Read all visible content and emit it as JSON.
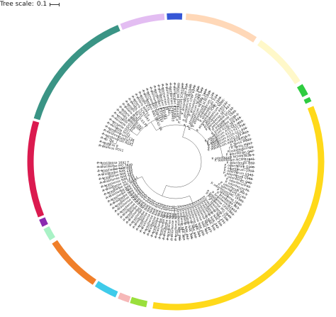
{
  "tree_scale": {
    "label": "Tree scale:",
    "value": "0.1"
  },
  "clades": [
    {
      "color": "#2ECC40"
    },
    {
      "color": "#2ECC40"
    },
    {
      "color": "#FFF8C9"
    },
    {
      "color": "#FFD8B8"
    },
    {
      "color": "#3556D6"
    },
    {
      "color": "#E3BDF2"
    },
    {
      "color": "#3A9485"
    },
    {
      "color": "#DB1A4F"
    },
    {
      "color": "#8A2BB0"
    },
    {
      "color": "#A9F2C6"
    },
    {
      "color": "#F07F2A"
    },
    {
      "color": "#3FCBEA"
    },
    {
      "color": "#F6B8B8"
    },
    {
      "color": "#9ADF3C"
    },
    {
      "color": "#FFD91A"
    }
  ],
  "leaf_labels": [
    "P. oxalicus PO11",
    "P. oxalicus 8",
    "P. sp. Q4",
    "P. carotovorum RG41",
    "P. carotovorum SCC2",
    "P. carotovorum F138",
    "P. versatile SCC1",
    "P. versatile Q3",
    "P. versatile QL21",
    "P. versatile Q138",
    "P. polaris NIBIO1006",
    "P. polaris NIBIO1392",
    "P. polaris PCM2",
    "P. polaris S4.16.03.P2",
    "P. polaris 1022",
    "P. polaris SCRI1043",
    "P. polaris WPP14",
    "P. polaris A73",
    "P. parmentieri RNS 08-42-1A",
    "P. parmentieri WPP163",
    "P. parmentieri SCC3193",
    "P. parmentieri IFB5427",
    "P. parmentieri IFB5441",
    "P. parmentieri S9",
    "P. parmentieri F062",
    "P. parmentieri CFBP8403",
    "P. parmentieri IFB5408",
    "P. parmentieri WC19161",
    "P. atrosepticum SCRI1043",
    "P. atrosepticum 21A",
    "P. atrosepticum JG10-08",
    "P. atrosepticum CFBP 6276",
    "P. atrosepticum 36A",
    "P. atrosepticum NCPPB 549",
    "P. atrosepticum NCPPB 3404",
    "P. atrosepticum SCRI1039",
    "P. atrosepticum 1.25",
    "P. atrosepticum 1.24",
    "P. atrosepticum ICMP 1526",
    "P. atrosepticum NZEC",
    "P. peruviense IFB5232",
    "P. peruviense SCC A17",
    "P. peruviense UGC32",
    "P. punjabense SS95",
    "P. punjabense SS95-2",
    "P. aquaticum A212-S19-A16",
    "P. aquaticum A35-S23-M15",
    "P. aquaticum A127-S21-F16",
    "P. aquaticum A105-S21-F16",
    "P. aquaticum A102-S19-M15",
    "P. aquaticum A98-S19-M15 T",
    "P. fontis M022",
    "P. fontis M017",
    "P. odoriferum Q3",
    "P. odoriferum Q47",
    "P. odoriferum NCPPB3839 T",
    "P. odoriferum NCPPB3841",
    "P. odoriferum Q32",
    "P. odoriferum Q106",
    "P. odoriferum Q110",
    "P. odoriferum Q142",
    "P. odoriferum Q166",
    "P. odoriferum Q40",
    "P. odoriferum S1",
    "P. odoriferum T5",
    "P. odoriferum JK2.1",
    "P. odoriferum BC S7",
    "P. odoriferum WC 19161",
    "P. brasiliense 1692",
    "P. brasiliense BC1",
    "P. brasiliense BZA12",
    "P. brasiliense CFIA1002",
    "P. brasiliense IPO 3649",
    "P. brasiliense 2106",
    "P. brasiliense NAK 231",
    "P. brasiliense NAK 220",
    "P. brasiliense NAK 242",
    "P. brasiliense NAK 370",
    "P. brasiliense NAK 427",
    "P. brasiliense NAK 461",
    "P. brasiliense NAK 255",
    "P. brasiliense NAK 283",
    "P. brasiliense NAK 410",
    "P. brasiliense NAK 398",
    "P. brasiliense NAK 412",
    "P. brasiliense NAK 367",
    "P. brasiliense NAK 298",
    "P. brasiliense NAK 227",
    "P. brasiliense NAK 238",
    "P. brasiliense NAK 311",
    "P. brasiliense NAK 352",
    "P. brasiliense NAK 401",
    "P. brasiliense NAK 284",
    "P. brasiliense NAK 278",
    "P. brasiliense NAK 303",
    "P. brasiliense NAK 441",
    "P. brasiliense NAK 357",
    "P. brasiliense NAK 392",
    "P. brasiliense NAK 341",
    "P. brasiliense NAK 348",
    "P. brasiliense NAK 271",
    "P. brasiliense NAK 240",
    "P. brasiliense NAK 382",
    "P. brasiliense NAK 344",
    "P. brasiliense NAK 283",
    "P. brasiliense NAK 403",
    "P. brasiliense NAK 430",
    "P. brasiliense NAK 152",
    "P. brasiliense NAK 163",
    "P. brasiliense IPO 3843",
    "P. brasiliense S4.16.03.L",
    "P. brasiliense NAK 253",
    "P. brasiliense NAK 451",
    "P. brasiliense NAK 210",
    "P. brasiliense NAK 219",
    "P. brasiliense NAK 378",
    "P. brasiliense IPO 3649",
    "P. brasiliense 1692 T"
  ]
}
